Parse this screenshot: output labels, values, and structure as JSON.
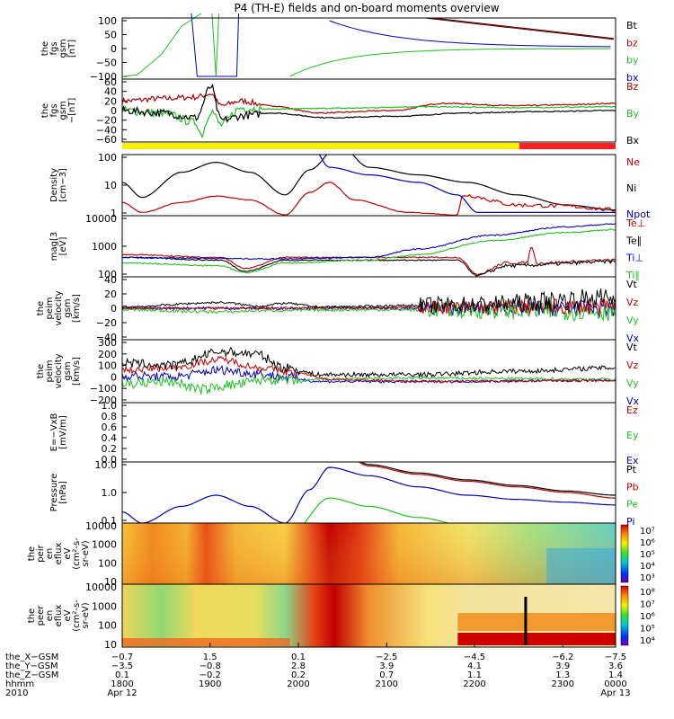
{
  "chart_data": {
    "type": "line",
    "title": "P4 (TH-E) fields and on-board moments overview",
    "panels": [
      {
        "id": "p1",
        "ylabel": [
          "the",
          "fgs",
          "gsm",
          "[nT]"
        ],
        "yticks": [
          "100",
          "50",
          "0",
          "−50",
          "−100"
        ],
        "ylim": [
          -100,
          100
        ],
        "series": [
          {
            "name": "Bt",
            "color": "#000000"
          },
          {
            "name": "bz",
            "color": "#b00000"
          },
          {
            "name": "by",
            "color": "#20c020"
          },
          {
            "name": "bx",
            "color": "#0000c0"
          }
        ]
      },
      {
        "id": "p2",
        "ylabel": [
          "the",
          "fgs",
          "gsm",
          "−[nT]"
        ],
        "yticks": [
          "60",
          "40",
          "20",
          "0",
          "−20",
          "−40",
          "−60"
        ],
        "ylim": [
          -60,
          60
        ],
        "series": [
          {
            "name": "Bz",
            "color": "#b00000"
          },
          {
            "name": "By",
            "color": "#20c020"
          },
          {
            "name": "Bx",
            "color": "#000000"
          }
        ]
      },
      {
        "id": "p4",
        "ylabel": [
          "Density",
          "[cm−3]"
        ],
        "yticks": [
          "100",
          "10",
          "1"
        ],
        "log": true,
        "series": [
          {
            "name": "Ne",
            "color": "#c00000"
          },
          {
            "name": "Ni",
            "color": "#000000"
          },
          {
            "name": "Npot",
            "color": "#0000c0"
          }
        ]
      },
      {
        "id": "p5",
        "ylabel": [
          "mag[3",
          "[eV]"
        ],
        "yticks": [
          "10000",
          "1000",
          "100"
        ],
        "log": true,
        "series": [
          {
            "name": "Te⊥",
            "color": "#c00000"
          },
          {
            "name": "Te∥",
            "color": "#000000"
          },
          {
            "name": "Ti⊥",
            "color": "#0000c0"
          },
          {
            "name": "Ti∥",
            "color": "#20c020"
          }
        ]
      },
      {
        "id": "p6",
        "ylabel": [
          "the",
          "peim",
          "velocity",
          "gsm",
          "[km/s]"
        ],
        "yticks": [
          "40",
          "20",
          "0",
          "−20",
          "−40"
        ],
        "ylim": [
          -40,
          40
        ],
        "series": [
          {
            "name": "Vt",
            "color": "#000000"
          },
          {
            "name": "Vz",
            "color": "#c00000"
          },
          {
            "name": "Vy",
            "color": "#20c020"
          },
          {
            "name": "Vx",
            "color": "#0000c0"
          }
        ]
      },
      {
        "id": "p7",
        "ylabel": [
          "the",
          "peim",
          "velocity",
          "gsm",
          "[km/s]"
        ],
        "yticks": [
          "300",
          "200",
          "100",
          "0",
          "−100",
          "−200"
        ],
        "ylim": [
          -200,
          300
        ],
        "series": [
          {
            "name": "Vt",
            "color": "#000000"
          },
          {
            "name": "Vz",
            "color": "#c00000"
          },
          {
            "name": "Vy",
            "color": "#20c020"
          },
          {
            "name": "Vx",
            "color": "#0000c0"
          }
        ]
      },
      {
        "id": "p8",
        "ylabel": [
          "E=−VxB",
          "[mV/m]"
        ],
        "yticks": [
          "1.0",
          "0.8",
          "0.6",
          "0.4",
          "0.2",
          "0.0"
        ],
        "ylim": [
          0,
          1
        ],
        "series": [
          {
            "name": "Ez",
            "color": "#c00000"
          },
          {
            "name": "Ey",
            "color": "#20c020"
          },
          {
            "name": "Ex",
            "color": "#0000c0"
          }
        ]
      },
      {
        "id": "p9",
        "ylabel": [
          "Pressure",
          "[nPa]"
        ],
        "yticks": [
          "10.0",
          "1.0",
          "0.1"
        ],
        "log": true,
        "series": [
          {
            "name": "Pt",
            "color": "#000000"
          },
          {
            "name": "Pb",
            "color": "#c00000"
          },
          {
            "name": "Pe",
            "color": "#20c020"
          },
          {
            "name": "Pi",
            "color": "#0000c0"
          }
        ]
      },
      {
        "id": "p10",
        "ylabel": [
          "the",
          "peir",
          "en",
          "eflux",
          "eV",
          "(cm²-s-",
          "sr-eV)"
        ],
        "yticks": [
          "10000",
          "1000",
          "100",
          "10"
        ],
        "colorbar": [
          "10⁷",
          "10⁶",
          "10⁵",
          "10⁴",
          "10³"
        ]
      },
      {
        "id": "p11",
        "ylabel": [
          "the",
          "peer",
          "en",
          "eflux",
          "eV",
          "(cm²-s-",
          "sr-eV)"
        ],
        "yticks": [
          "10000",
          "1000",
          "100",
          "10"
        ],
        "colorbar": [
          "10⁸",
          "10⁷",
          "10⁶",
          "10⁵",
          "10⁴"
        ]
      }
    ],
    "x_rows": [
      {
        "label": "the_X−GSM",
        "values": [
          "−0.7",
          "1.5",
          "0.1",
          "−2.5",
          "−4.5",
          "−6.2",
          "−7.5"
        ]
      },
      {
        "label": "the_Y−GSM",
        "values": [
          "−3.5",
          "−0.8",
          "2.8",
          "3.9",
          "4.1",
          "3.9",
          "3.6"
        ]
      },
      {
        "label": "the_Z−GSM",
        "values": [
          "0.1",
          "−0.2",
          "0.2",
          "0.7",
          "1.1",
          "1.3",
          "1.4"
        ]
      },
      {
        "label": "hhmm",
        "values": [
          "1800",
          "1900",
          "2000",
          "2100",
          "2200",
          "2300",
          "0000"
        ]
      },
      {
        "label": "2010",
        "values": [
          "Apr 12",
          "",
          "",
          "",
          "",
          "",
          "Apr 13"
        ]
      }
    ]
  }
}
